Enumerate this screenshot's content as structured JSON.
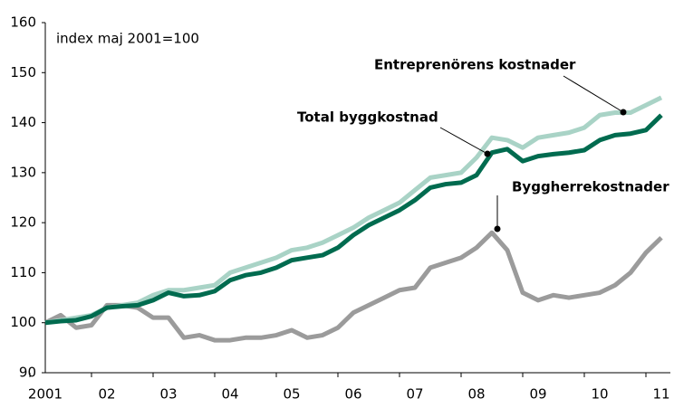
{
  "chart_data": {
    "type": "line",
    "subtitle": "index maj 2001=100",
    "categories": [
      "2001",
      null,
      null,
      null,
      "02",
      null,
      null,
      null,
      "03",
      null,
      null,
      null,
      "04",
      null,
      null,
      null,
      "05",
      null,
      null,
      null,
      "06",
      null,
      null,
      null,
      "07",
      null,
      null,
      null,
      "08",
      null,
      null,
      null,
      "09",
      null,
      null,
      null,
      "10",
      null,
      null,
      null,
      "11"
    ],
    "series": [
      {
        "name": "Byggherrekostnader",
        "color": "#9b9b9b",
        "values": [
          100,
          101.5,
          99,
          99.5,
          103.5,
          103.5,
          103,
          101,
          101,
          97,
          97.5,
          96.5,
          96.5,
          97,
          97,
          97.5,
          98.5,
          97,
          97.5,
          99,
          102,
          103.5,
          105,
          106.5,
          107,
          111,
          112,
          113,
          115,
          118,
          114.5,
          106,
          104.5,
          105.5,
          105,
          105.5,
          106,
          107.5,
          110,
          114,
          117
        ]
      },
      {
        "name": "Entreprenörens kostnader",
        "color": "#a9d3c6",
        "values": [
          100,
          100.5,
          101,
          101.5,
          103,
          103.5,
          104,
          105.5,
          106.5,
          106.5,
          107,
          107.5,
          110,
          111,
          112,
          113,
          114.5,
          115,
          116,
          117.5,
          119,
          121,
          122.5,
          124,
          126.5,
          129,
          129.5,
          130,
          133,
          137,
          136.5,
          135,
          137,
          137.5,
          138,
          139,
          141.5,
          142,
          142,
          143.5,
          145
        ]
      },
      {
        "name": "Total byggkostnad",
        "color": "#006b4f",
        "values": [
          100,
          100.3,
          100.5,
          101.3,
          103,
          103.3,
          103.5,
          104.5,
          106,
          105.3,
          105.5,
          106.3,
          108.5,
          109.5,
          110,
          111,
          112.5,
          113,
          113.5,
          115,
          117.5,
          119.5,
          121,
          122.5,
          124.5,
          127,
          127.7,
          128,
          129.5,
          134,
          134.7,
          132.3,
          133.3,
          133.7,
          134,
          134.5,
          136.5,
          137.5,
          137.8,
          138.5,
          141.5
        ]
      }
    ],
    "ylim": [
      90,
      160
    ],
    "yticks": [
      90,
      100,
      110,
      120,
      130,
      140,
      150,
      160
    ],
    "grid": false
  }
}
